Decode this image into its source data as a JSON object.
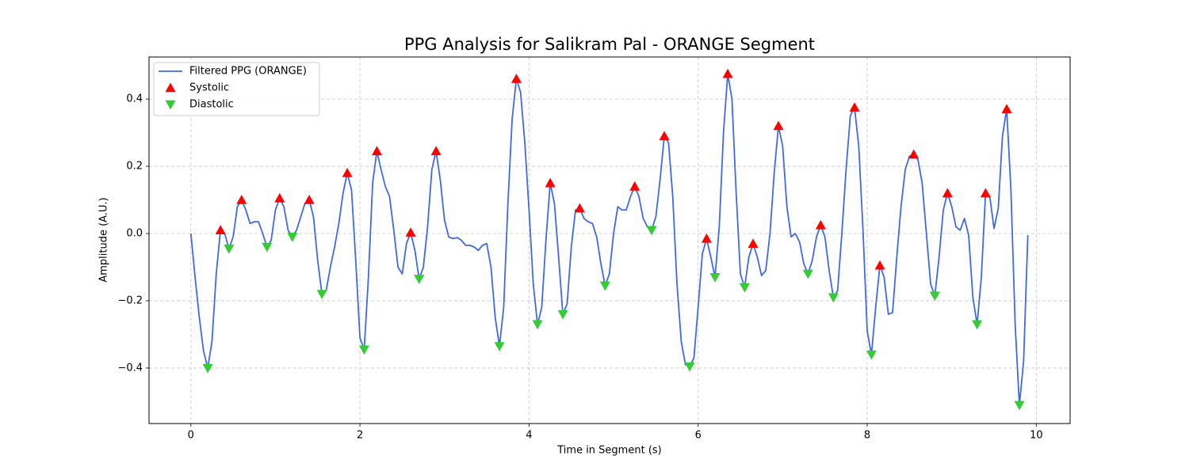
{
  "chart_data": {
    "type": "line",
    "title": "PPG Analysis for Salikram Pal - ORANGE Segment",
    "x_label": "Time in Segment (s)",
    "y_label": "Amplitude (A.U.)",
    "xlim": [
      -0.495,
      10.4
    ],
    "ylim": [
      -0.565,
      0.525
    ],
    "xticks": [
      0,
      2,
      4,
      6,
      8,
      10
    ],
    "yticks": [
      {
        "value": -0.4,
        "label": "−0.4"
      },
      {
        "value": -0.2,
        "label": "−0.2"
      },
      {
        "value": 0,
        "label": "0.0"
      },
      0.2,
      0.4
    ],
    "grid": true,
    "legend": "upper left",
    "series": [
      {
        "name": "Filtered PPG (ORANGE)",
        "type": "line",
        "color": "#4169e1",
        "x": [
          0,
          0.05,
          0.1,
          0.15,
          0.2,
          0.25,
          0.3,
          0.35,
          0.4,
          0.45,
          0.5,
          0.55,
          0.6,
          0.65,
          0.7,
          0.75,
          0.8,
          0.85,
          0.9,
          0.95,
          1,
          1.05,
          1.1,
          1.15,
          1.2,
          1.25,
          1.3,
          1.35,
          1.4,
          1.45,
          1.5,
          1.55,
          1.6,
          1.65,
          1.7,
          1.75,
          1.8,
          1.85,
          1.9,
          1.95,
          2,
          2.05,
          2.1,
          2.15,
          2.2,
          2.25,
          2.3,
          2.35,
          2.4,
          2.45,
          2.5,
          2.55,
          2.6,
          2.65,
          2.7,
          2.75,
          2.8,
          2.85,
          2.9,
          2.95,
          3,
          3.05,
          3.1,
          3.15,
          3.2,
          3.25,
          3.3,
          3.35,
          3.4,
          3.45,
          3.5,
          3.55,
          3.6,
          3.65,
          3.7,
          3.75,
          3.8,
          3.85,
          3.9,
          3.95,
          4,
          4.05,
          4.1,
          4.15,
          4.2,
          4.25,
          4.3,
          4.35,
          4.4,
          4.45,
          4.5,
          4.55,
          4.6,
          4.65,
          4.7,
          4.75,
          4.8,
          4.85,
          4.9,
          4.95,
          5,
          5.05,
          5.1,
          5.15,
          5.2,
          5.25,
          5.3,
          5.35,
          5.4,
          5.45,
          5.5,
          5.55,
          5.6,
          5.65,
          5.7,
          5.75,
          5.8,
          5.85,
          5.9,
          5.95,
          6,
          6.05,
          6.1,
          6.15,
          6.2,
          6.25,
          6.3,
          6.35,
          6.4,
          6.45,
          6.5,
          6.55,
          6.6,
          6.65,
          6.7,
          6.75,
          6.8,
          6.85,
          6.9,
          6.95,
          7,
          7.05,
          7.1,
          7.15,
          7.2,
          7.25,
          7.3,
          7.35,
          7.4,
          7.45,
          7.5,
          7.55,
          7.6,
          7.65,
          7.7,
          7.75,
          7.8,
          7.85,
          7.9,
          7.95,
          8,
          8.05,
          8.1,
          8.15,
          8.2,
          8.25,
          8.3,
          8.35,
          8.4,
          8.45,
          8.5,
          8.55,
          8.6,
          8.65,
          8.7,
          8.75,
          8.8,
          8.85,
          8.9,
          8.95,
          9,
          9.05,
          9.1,
          9.15,
          9.2,
          9.25,
          9.3,
          9.35,
          9.4,
          9.45,
          9.5,
          9.55,
          9.6,
          9.65,
          9.7,
          9.75,
          9.8,
          9.85,
          9.9
        ],
        "values": [
          0,
          -0.13,
          -0.25,
          -0.35,
          -0.4,
          -0.32,
          -0.12,
          0.01,
          0.0,
          -0.045,
          -0.01,
          0.08,
          0.1,
          0.07,
          0.03,
          0.035,
          0.035,
          0.0,
          -0.04,
          -0.02,
          0.07,
          0.105,
          0.08,
          0.01,
          -0.01,
          0.01,
          0.05,
          0.09,
          0.1,
          0.05,
          -0.08,
          -0.18,
          -0.17,
          -0.1,
          -0.04,
          0.03,
          0.12,
          0.18,
          0.13,
          -0.08,
          -0.31,
          -0.345,
          -0.13,
          0.15,
          0.245,
          0.19,
          0.14,
          0.11,
          0.01,
          -0.1,
          -0.12,
          -0.03,
          0.003,
          -0.05,
          -0.135,
          -0.1,
          0.02,
          0.19,
          0.245,
          0.16,
          0.04,
          -0.01,
          -0.015,
          -0.012,
          -0.02,
          -0.035,
          -0.035,
          -0.04,
          -0.05,
          -0.035,
          -0.03,
          -0.1,
          -0.25,
          -0.335,
          -0.22,
          0.09,
          0.34,
          0.46,
          0.42,
          0.27,
          0.07,
          -0.15,
          -0.27,
          -0.22,
          -0.02,
          0.15,
          0.09,
          -0.07,
          -0.24,
          -0.21,
          -0.04,
          0.07,
          0.075,
          0.045,
          0.035,
          0.03,
          -0.01,
          -0.09,
          -0.155,
          -0.12,
          0.0,
          0.08,
          0.07,
          0.07,
          0.11,
          0.14,
          0.11,
          0.045,
          0.02,
          0.01,
          0.05,
          0.16,
          0.29,
          0.27,
          0.11,
          -0.15,
          -0.32,
          -0.39,
          -0.395,
          -0.37,
          -0.22,
          -0.06,
          -0.015,
          -0.07,
          -0.13,
          0.02,
          0.3,
          0.475,
          0.4,
          0.12,
          -0.12,
          -0.16,
          -0.07,
          -0.03,
          -0.07,
          -0.125,
          -0.11,
          0.0,
          0.18,
          0.32,
          0.26,
          0.08,
          -0.01,
          0.0,
          -0.025,
          -0.09,
          -0.12,
          -0.08,
          -0.01,
          0.025,
          -0.01,
          -0.11,
          -0.19,
          -0.17,
          0.0,
          0.19,
          0.35,
          0.375,
          0.26,
          0.01,
          -0.29,
          -0.36,
          -0.22,
          -0.095,
          -0.13,
          -0.24,
          -0.235,
          -0.07,
          0.08,
          0.19,
          0.23,
          0.235,
          0.22,
          0.15,
          0.0,
          -0.15,
          -0.185,
          -0.07,
          0.07,
          0.12,
          0.08,
          0.02,
          0.01,
          0.045,
          -0.005,
          -0.19,
          -0.27,
          -0.13,
          0.12,
          0.11,
          0.015,
          0.075,
          0.29,
          0.37,
          0.13,
          -0.27,
          -0.51,
          -0.38,
          -0.005
        ]
      },
      {
        "name": "Systolic",
        "type": "scatter",
        "marker": "triangle-up",
        "color": "#ff0000",
        "x": [
          0.35,
          0.6,
          1.05,
          1.4,
          1.85,
          2.2,
          2.6,
          2.9,
          3.85,
          4.25,
          4.6,
          5.25,
          5.6,
          6.1,
          6.35,
          6.65,
          6.95,
          7.45,
          7.85,
          8.15,
          8.55,
          8.95,
          9.4,
          9.65
        ],
        "values": [
          0.01,
          0.1,
          0.105,
          0.1,
          0.18,
          0.245,
          0.003,
          0.245,
          0.46,
          0.15,
          0.075,
          0.14,
          0.29,
          -0.015,
          0.475,
          -0.03,
          0.32,
          0.025,
          0.375,
          -0.095,
          0.235,
          0.12,
          0.12,
          0.37
        ]
      },
      {
        "name": "Diastolic",
        "type": "scatter",
        "marker": "triangle-down",
        "color": "#32cd32",
        "x": [
          0.2,
          0.45,
          0.9,
          1.2,
          1.55,
          2.05,
          2.7,
          3.65,
          4.1,
          4.4,
          4.9,
          5.45,
          5.9,
          6.2,
          6.55,
          7.3,
          7.6,
          8.05,
          8.8,
          9.3,
          9.8
        ],
        "values": [
          -0.4,
          -0.045,
          -0.04,
          -0.01,
          -0.18,
          -0.345,
          -0.135,
          -0.335,
          -0.27,
          -0.24,
          -0.155,
          0.01,
          -0.395,
          -0.13,
          -0.16,
          -0.12,
          -0.19,
          -0.36,
          -0.185,
          -0.27,
          -0.51
        ]
      }
    ]
  }
}
